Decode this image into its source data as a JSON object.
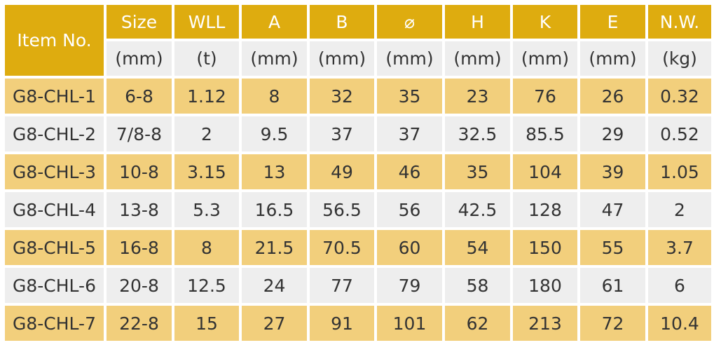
{
  "table": {
    "item_header": "Item No.",
    "columns": [
      {
        "name": "Size",
        "unit": "(mm)"
      },
      {
        "name": "WLL",
        "unit": "(t)"
      },
      {
        "name": "A",
        "unit": "(mm)"
      },
      {
        "name": "B",
        "unit": "(mm)"
      },
      {
        "name": "⌀",
        "unit": "(mm)"
      },
      {
        "name": "H",
        "unit": "(mm)"
      },
      {
        "name": "K",
        "unit": "(mm)"
      },
      {
        "name": "E",
        "unit": "(mm)"
      },
      {
        "name": "N.W.",
        "unit": "(kg)"
      }
    ],
    "rows": [
      [
        "G8-CHL-1",
        "6-8",
        "1.12",
        "8",
        "32",
        "35",
        "23",
        "76",
        "26",
        "0.32"
      ],
      [
        "G8-CHL-2",
        "7/8-8",
        "2",
        "9.5",
        "37",
        "37",
        "32.5",
        "85.5",
        "29",
        "0.52"
      ],
      [
        "G8-CHL-3",
        "10-8",
        "3.15",
        "13",
        "49",
        "46",
        "35",
        "104",
        "39",
        "1.05"
      ],
      [
        "G8-CHL-4",
        "13-8",
        "5.3",
        "16.5",
        "56.5",
        "56",
        "42.5",
        "128",
        "47",
        "2"
      ],
      [
        "G8-CHL-5",
        "16-8",
        "8",
        "21.5",
        "70.5",
        "60",
        "54",
        "150",
        "55",
        "3.7"
      ],
      [
        "G8-CHL-6",
        "20-8",
        "12.5",
        "24",
        "77",
        "79",
        "58",
        "180",
        "61",
        "6"
      ],
      [
        "G8-CHL-7",
        "22-8",
        "15",
        "27",
        "91",
        "101",
        "62",
        "213",
        "72",
        "10.4"
      ]
    ]
  },
  "colors": {
    "header_gold": "#deac0f",
    "row_gold": "#f2cf7c",
    "row_gray": "#eeeeee",
    "text": "#333333"
  }
}
